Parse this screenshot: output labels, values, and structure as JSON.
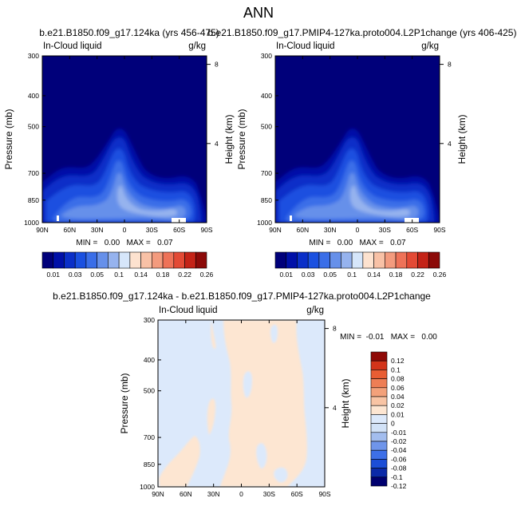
{
  "figure": {
    "title": "ANN"
  },
  "colormaps": {
    "abs": [
      "#00007a",
      "#0010a8",
      "#0a2fc8",
      "#1a50e0",
      "#3a6ee8",
      "#6690ea",
      "#96b3ee",
      "#d6e6fa",
      "#fde2cf",
      "#f8c1a6",
      "#f39b7e",
      "#ee7258",
      "#e34a35",
      "#c42317",
      "#8c0a08"
    ],
    "diff": [
      "#00006f",
      "#0b2aa8",
      "#1c4ed6",
      "#3d6fe8",
      "#6f95ea",
      "#a3bdee",
      "#d2e2f7",
      "#dce9fb",
      "#fde6d2",
      "#f8c4a4",
      "#f3a17a",
      "#ee7e55",
      "#e85d33",
      "#d3341a",
      "#8f0906"
    ]
  },
  "chart_data": [
    {
      "type": "heatmap",
      "title": "b.e21.B1850.f09_g17.124ka (yrs 456-475)",
      "left_label": "In-Cloud liquid",
      "right_label": "g/kg",
      "ylabel": "Pressure (mb)",
      "ylabel_right": "Height (km)",
      "x": [
        "90N",
        "60N",
        "30N",
        "0",
        "30S",
        "60S",
        "90S"
      ],
      "y": [
        "300",
        "400",
        "500",
        "700",
        "850",
        "1000"
      ],
      "y_right": [
        "8",
        "4"
      ],
      "stats": "MIN =   0.00   MAX =   0.07",
      "colorbar": [
        "0.01",
        "0.03",
        "0.05",
        "0.1",
        "0.14",
        "0.18",
        "0.22",
        "0.26"
      ]
    },
    {
      "type": "heatmap",
      "title": "b.e21.B1850.f09_g17.PMIP4-127ka.proto004.L2P1change (yrs 406-425)",
      "left_label": "In-Cloud liquid",
      "right_label": "g/kg",
      "ylabel": "Pressure (mb)",
      "ylabel_right": "Height (km)",
      "x": [
        "90N",
        "60N",
        "30N",
        "0",
        "30S",
        "60S",
        "90S"
      ],
      "y": [
        "300",
        "400",
        "500",
        "700",
        "850",
        "1000"
      ],
      "y_right": [
        "8",
        "4"
      ],
      "stats": "MIN =   0.00   MAX =   0.07",
      "colorbar": [
        "0.01",
        "0.03",
        "0.05",
        "0.1",
        "0.14",
        "0.18",
        "0.22",
        "0.26"
      ]
    },
    {
      "type": "heatmap",
      "title": "b.e21.B1850.f09_g17.124ka - b.e21.B1850.f09_g17.PMIP4-127ka.proto004.L2P1change",
      "left_label": "In-Cloud liquid",
      "right_label": "g/kg",
      "ylabel": "Pressure (mb)",
      "ylabel_right": "Height (km)",
      "x": [
        "90N",
        "60N",
        "30N",
        "0",
        "30S",
        "60S",
        "90S"
      ],
      "y": [
        "300",
        "400",
        "500",
        "700",
        "850",
        "1000"
      ],
      "y_right": [
        "8",
        "4"
      ],
      "stats": "MIN =  -0.01   MAX =   0.00",
      "colorbar": [
        "0.12",
        "0.1",
        "0.08",
        "0.06",
        "0.04",
        "0.02",
        "0.01",
        "0",
        "-0.01",
        "-0.02",
        "-0.04",
        "-0.06",
        "-0.08",
        "-0.1",
        "-0.12"
      ]
    }
  ]
}
